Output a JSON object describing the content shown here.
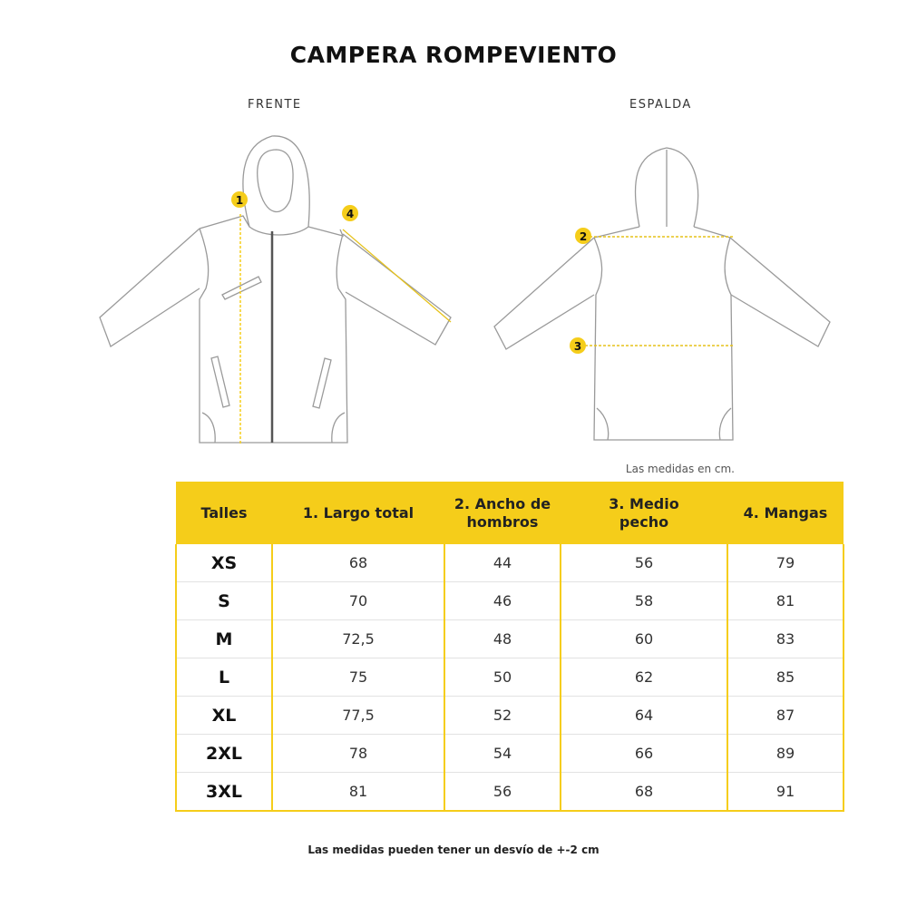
{
  "title": "CAMPERA ROMPEVIENTO",
  "views": {
    "front": "FRENTE",
    "back": "ESPALDA"
  },
  "markers": [
    "1",
    "2",
    "3",
    "4"
  ],
  "accent_color": "#f5cd1a",
  "unit_note": "Las medidas en cm.",
  "table": {
    "headers": [
      "Talles",
      "1. Largo total",
      "2. Ancho de hombros",
      "3. Medio pecho",
      "4. Mangas"
    ],
    "rows": [
      [
        "XS",
        "68",
        "44",
        "56",
        "79"
      ],
      [
        "S",
        "70",
        "46",
        "58",
        "81"
      ],
      [
        "M",
        "72,5",
        "48",
        "60",
        "83"
      ],
      [
        "L",
        "75",
        "50",
        "62",
        "85"
      ],
      [
        "XL",
        "77,5",
        "52",
        "64",
        "87"
      ],
      [
        "2XL",
        "78",
        "54",
        "66",
        "89"
      ],
      [
        "3XL",
        "81",
        "56",
        "68",
        "91"
      ]
    ]
  },
  "footnote": "Las medidas pueden tener un desvío de +-2 cm"
}
